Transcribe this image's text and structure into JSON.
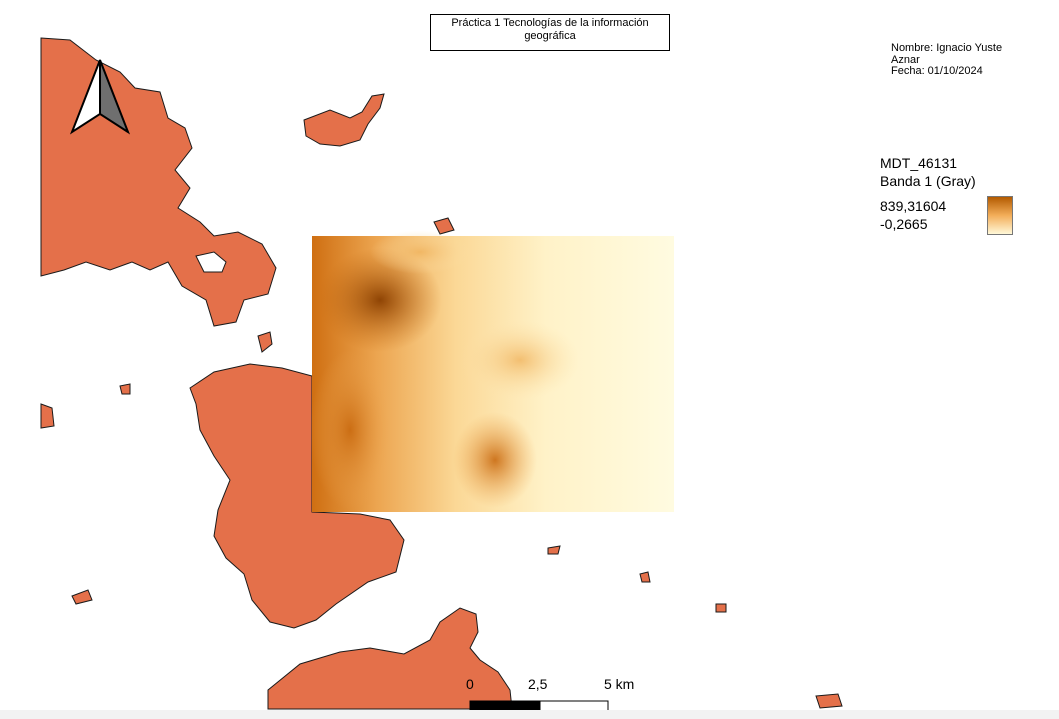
{
  "title": "Práctica 1 Tecnologías de la información geográfica",
  "author": {
    "name_line1": "Nombre: Ignacio Yuste",
    "name_line2": "Aznar",
    "date": "Fecha: 01/10/2024"
  },
  "legend": {
    "layer": "MDT_46131",
    "band": "Banda 1 (Gray)",
    "max_value": "839,31604",
    "min_value": "-0,2665",
    "ramp_high_color": "#b35a00",
    "ramp_mid_color": "#f3ae5a",
    "ramp_low_color": "#fff8d8"
  },
  "scale_bar": {
    "labels": [
      "0",
      "2,5",
      "5 km"
    ]
  },
  "colors": {
    "land_fill": "#e4704a",
    "land_stroke": "#1a1a1a",
    "background": "#ffffff"
  },
  "icons": {
    "north_arrow": "north-arrow-icon"
  }
}
